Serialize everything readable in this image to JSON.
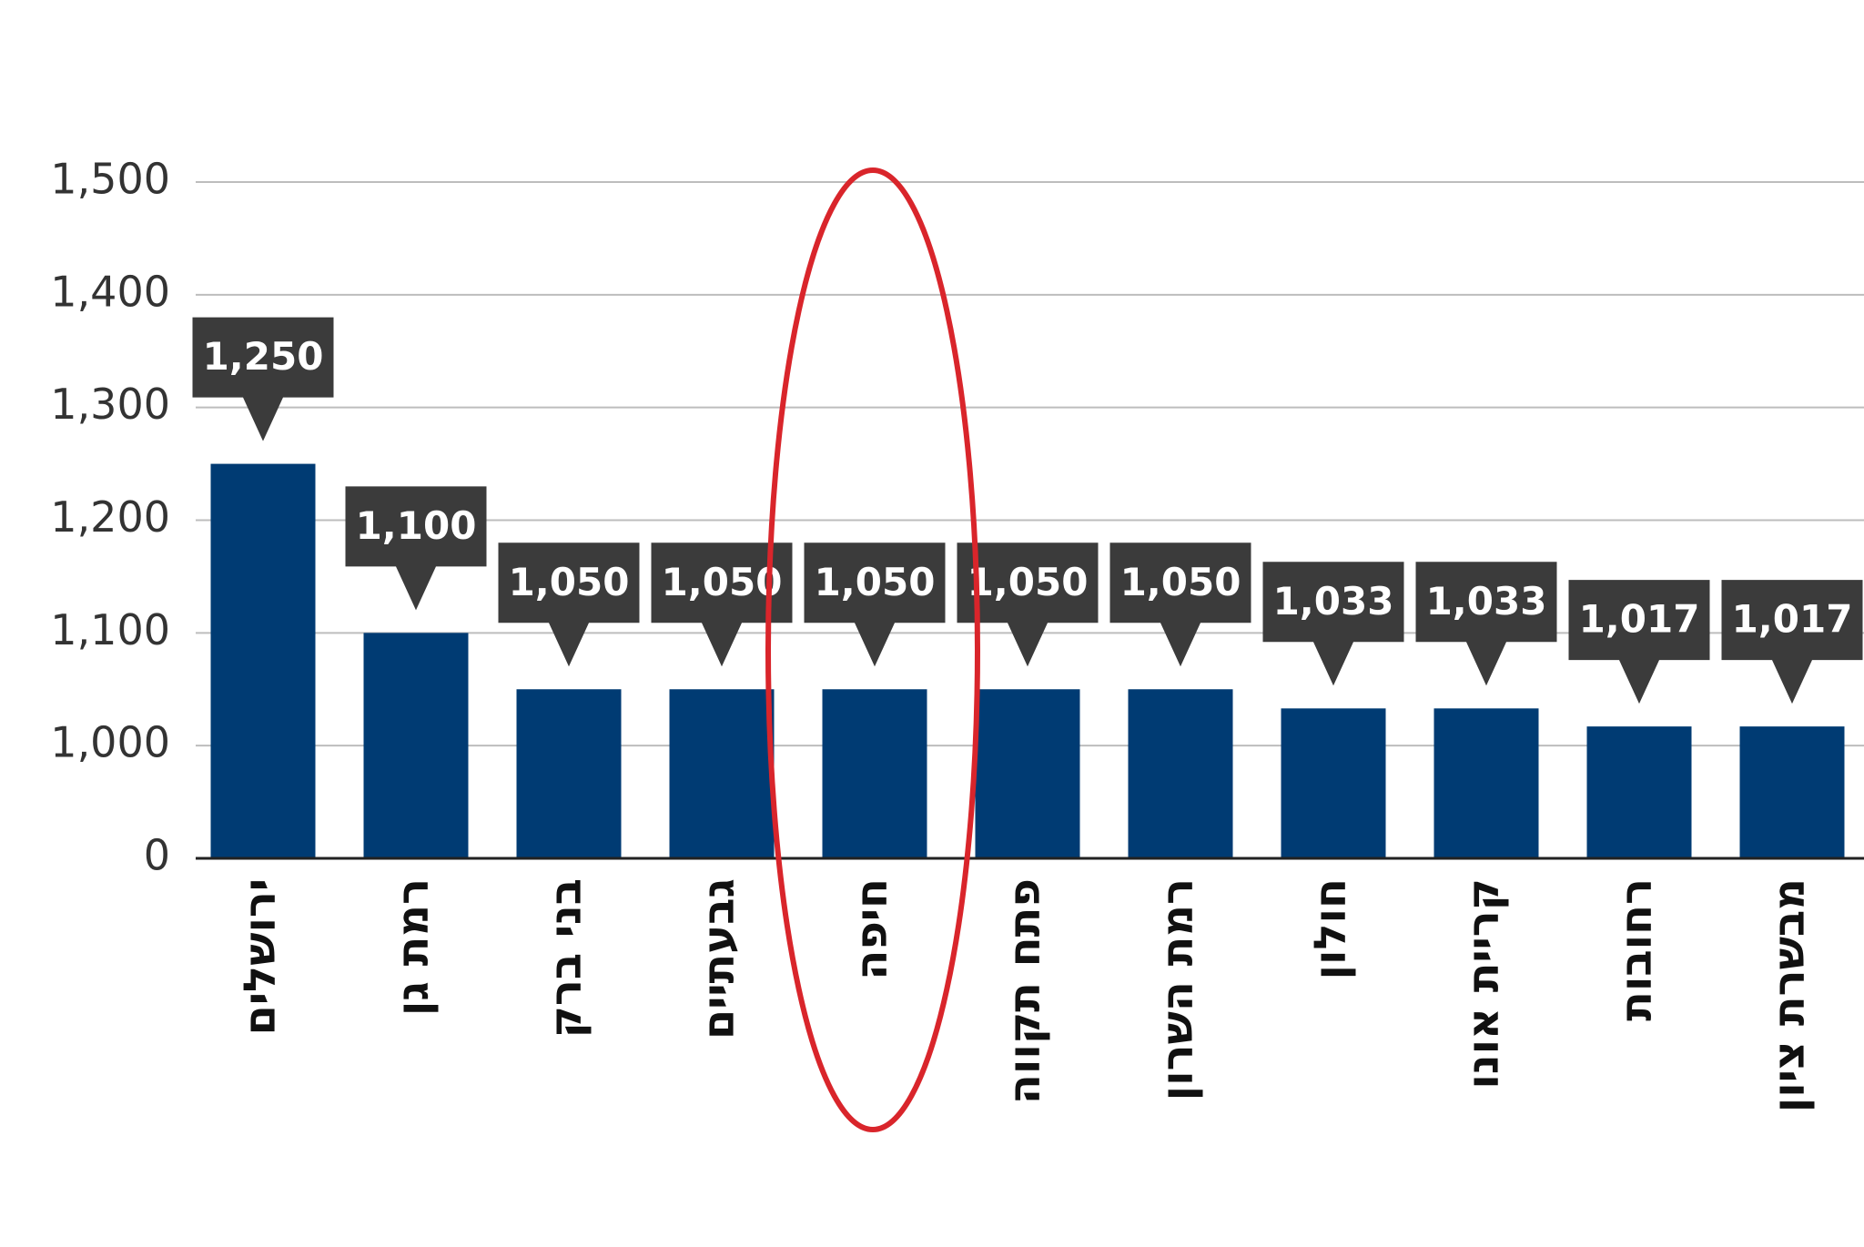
{
  "chart_data": {
    "type": "bar",
    "categories": [
      "ירושלים",
      "רמת גן",
      "בני ברק",
      "גבעתיים",
      "חיפה",
      "פתח תקווה",
      "רמת השרון",
      "חולון",
      "קריית אונו",
      "רחובות",
      "מבשרת ציון"
    ],
    "values": [
      1250,
      1100,
      1050,
      1050,
      1050,
      1050,
      1050,
      1033,
      1033,
      1017,
      1017
    ],
    "value_labels": [
      "1,250",
      "1,100",
      "1,050",
      "1,050",
      "1,050",
      "1,050",
      "1,050",
      "1,033",
      "1,033",
      "1,017",
      "1,017"
    ],
    "color": "#003b73",
    "ylim": [
      0,
      1500
    ],
    "yticks": [
      0,
      {
        "value": 1000,
        "label": "1,000"
      },
      {
        "value": 1100,
        "label": "1,100"
      },
      {
        "value": 1200,
        "label": "1,200"
      },
      {
        "value": 1300,
        "label": "1,300"
      },
      {
        "value": 1400,
        "label": "1,400"
      },
      {
        "value": 1500,
        "label": "1,500"
      }
    ],
    "tick_spacing": "even",
    "grid": true
  }
}
